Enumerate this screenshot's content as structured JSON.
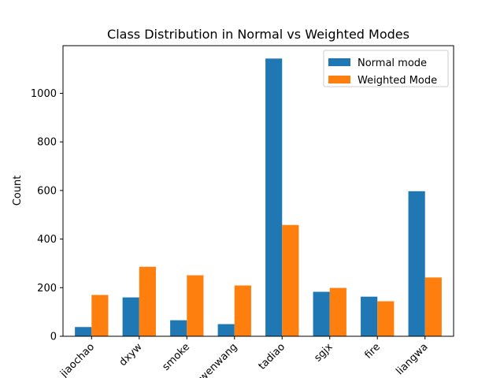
{
  "chart_data": {
    "type": "bar",
    "title": "Class Distribution in Normal vs Weighted Modes",
    "xlabel": "",
    "ylabel": "Count",
    "categories": [
      "jiaochao",
      "dxyw",
      "smoke",
      "jinwenwang",
      "tadiao",
      "sgjx",
      "fire",
      "liangwa"
    ],
    "series": [
      {
        "name": "Normal mode",
        "color": "#1f77b4",
        "values": [
          38,
          160,
          66,
          50,
          1143,
          183,
          163,
          597
        ]
      },
      {
        "name": "Weighted Mode",
        "color": "#ff7f0e",
        "values": [
          170,
          286,
          251,
          209,
          458,
          199,
          144,
          242
        ]
      }
    ],
    "ylim": [
      0,
      1196
    ],
    "yticks": [
      0,
      200,
      400,
      600,
      800,
      1000
    ],
    "grid": false,
    "legend": "top-right"
  }
}
